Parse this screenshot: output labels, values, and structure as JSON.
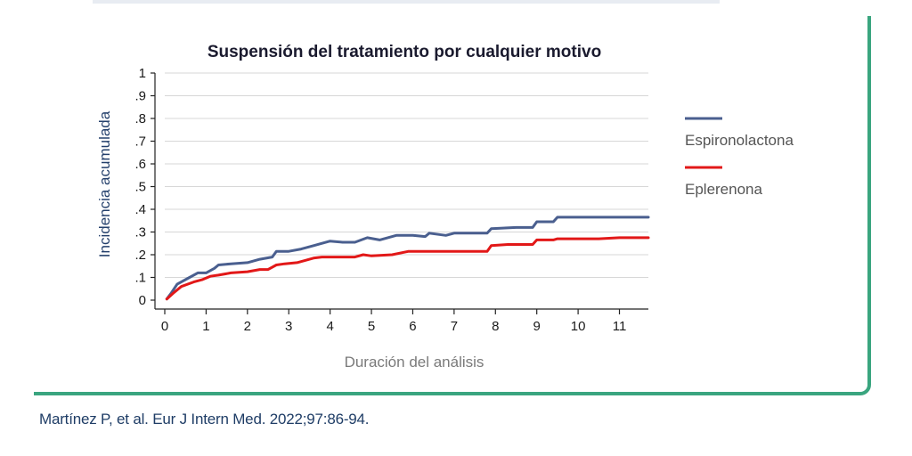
{
  "chart_data": {
    "type": "line",
    "title": "Suspensión del tratamiento por cualquier motivo",
    "xlabel": "Duración del análisis",
    "ylabel": "Incidencia acumulada",
    "xlim": [
      0,
      11.7
    ],
    "ylim": [
      0,
      1
    ],
    "xticks": [
      0,
      1,
      2,
      3,
      4,
      5,
      6,
      7,
      8,
      9,
      10,
      11
    ],
    "xtick_labels": [
      "0",
      "1",
      "2",
      "3",
      "4",
      "5",
      "6",
      "7",
      "8",
      "9",
      "10",
      "11"
    ],
    "yticks": [
      0,
      0.1,
      0.2,
      0.3,
      0.4,
      0.5,
      0.6,
      0.7,
      0.8,
      0.9,
      1
    ],
    "ytick_labels": [
      "0",
      ".1",
      ".2",
      ".3",
      ".4",
      ".5",
      ".6",
      ".7",
      ".8",
      ".9",
      "1"
    ],
    "gridlines": "horizontal",
    "legend_position": "right",
    "series": [
      {
        "name": "Espironolactona",
        "color": "#4a5f8f",
        "x": [
          0.05,
          0.15,
          0.3,
          0.6,
          0.8,
          1.0,
          1.2,
          1.3,
          1.6,
          2.0,
          2.3,
          2.6,
          2.7,
          3.0,
          3.3,
          3.6,
          4.0,
          4.3,
          4.6,
          4.9,
          5.2,
          5.6,
          6.0,
          6.3,
          6.4,
          6.8,
          7.0,
          7.5,
          7.8,
          7.9,
          8.5,
          8.9,
          9.0,
          9.4,
          9.5,
          10.0,
          10.5,
          11.0,
          11.7
        ],
        "y": [
          0.005,
          0.03,
          0.07,
          0.1,
          0.12,
          0.12,
          0.14,
          0.155,
          0.16,
          0.165,
          0.18,
          0.19,
          0.215,
          0.215,
          0.225,
          0.24,
          0.26,
          0.255,
          0.255,
          0.275,
          0.265,
          0.285,
          0.285,
          0.28,
          0.295,
          0.285,
          0.295,
          0.295,
          0.295,
          0.315,
          0.32,
          0.32,
          0.345,
          0.345,
          0.365,
          0.365,
          0.365,
          0.365,
          0.365
        ]
      },
      {
        "name": "Eplerenona",
        "color": "#e21818",
        "x": [
          0.05,
          0.2,
          0.4,
          0.7,
          0.9,
          1.1,
          1.3,
          1.6,
          2.0,
          2.3,
          2.5,
          2.7,
          2.9,
          3.2,
          3.6,
          3.8,
          4.0,
          4.6,
          4.8,
          5.0,
          5.5,
          5.9,
          6.0,
          6.5,
          7.0,
          7.5,
          7.8,
          7.9,
          8.3,
          8.9,
          9.0,
          9.4,
          9.5,
          10.0,
          10.5,
          11.0,
          11.7
        ],
        "y": [
          0.005,
          0.03,
          0.06,
          0.08,
          0.09,
          0.105,
          0.11,
          0.12,
          0.125,
          0.135,
          0.135,
          0.155,
          0.16,
          0.165,
          0.185,
          0.19,
          0.19,
          0.19,
          0.2,
          0.195,
          0.2,
          0.215,
          0.215,
          0.215,
          0.215,
          0.215,
          0.215,
          0.24,
          0.245,
          0.245,
          0.265,
          0.265,
          0.27,
          0.27,
          0.27,
          0.275,
          0.275
        ]
      }
    ]
  },
  "citation": "Martínez P, et al. Eur J Intern Med. 2022;97:86-94."
}
